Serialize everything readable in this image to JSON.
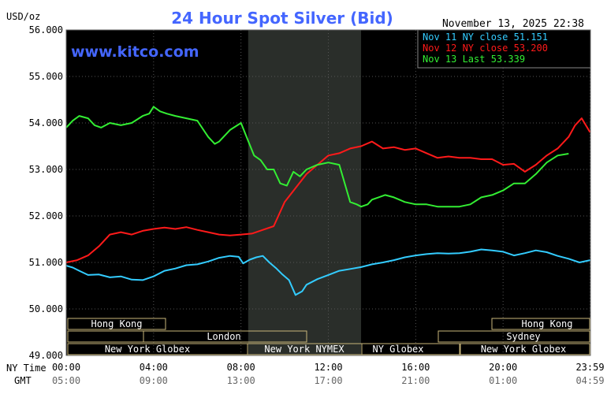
{
  "header": {
    "units": "USD/oz",
    "title": "24 Hour Spot Silver (Bid)",
    "datetime": "November 13, 2025 22:38",
    "watermark": "www.kitco.com"
  },
  "legend": [
    {
      "label": "Nov 11 NY close 51.151",
      "color": "#33ccff"
    },
    {
      "label": "Nov 12 NY close 53.200",
      "color": "#ff1a1a"
    },
    {
      "label": "Nov 13 Last 53.339",
      "color": "#33ee33"
    }
  ],
  "markets": {
    "hong_kong_1": "Hong Kong",
    "london": "London",
    "ny_globex_1": "New York Globex",
    "ny_nymex": "New York NYMEX",
    "ny_globex_2": "NY Globex",
    "hong_kong_2": "Hong Kong",
    "sydney": "Sydney",
    "ny_globex_3": "New York Globex"
  },
  "axis_prefix": {
    "ny": "NY Time",
    "gmt": "GMT"
  },
  "colors": {
    "background": "#000000",
    "title": "#4466ff",
    "nov11": "#33ccff",
    "nov12": "#ff1a1a",
    "nov13": "#33ee33",
    "session_box": "#c8b67a",
    "shade": "#2a2e2a"
  },
  "chart_data": {
    "type": "line",
    "title": "24 Hour Spot Silver (Bid)",
    "ylabel": "USD/oz",
    "ylim": [
      49000,
      56000
    ],
    "xlim": [
      0,
      24
    ],
    "yticks": [
      {
        "v": 49000,
        "label": "49.000"
      },
      {
        "v": 50000,
        "label": "50.000"
      },
      {
        "v": 51000,
        "label": "51.000"
      },
      {
        "v": 52000,
        "label": "52.000"
      },
      {
        "v": 53000,
        "label": "53.000"
      },
      {
        "v": 54000,
        "label": "54.000"
      },
      {
        "v": 55000,
        "label": "55.000"
      },
      {
        "v": 56000,
        "label": "56.000"
      }
    ],
    "xticks": [
      {
        "h": 0,
        "ny": "00:00",
        "gmt": "05:00"
      },
      {
        "h": 4,
        "ny": "04:00",
        "gmt": "09:00"
      },
      {
        "h": 8,
        "ny": "08:00",
        "gmt": "13:00"
      },
      {
        "h": 12,
        "ny": "12:00",
        "gmt": "17:00"
      },
      {
        "h": 16,
        "ny": "16:00",
        "gmt": "21:00"
      },
      {
        "h": 20,
        "ny": "20:00",
        "gmt": "01:00"
      },
      {
        "h": 23.983,
        "ny": "23:59",
        "gmt": "04:59"
      }
    ],
    "shaded_range": [
      8.33,
      13.5
    ],
    "legend_position": "top-right",
    "series": [
      {
        "name": "Nov 11 NY close 51.151",
        "key": "nov11",
        "x": [
          0,
          0.3,
          0.6,
          1.0,
          1.5,
          2.0,
          2.5,
          3.0,
          3.5,
          4.0,
          4.5,
          5.0,
          5.5,
          6.0,
          6.5,
          7.0,
          7.5,
          7.9,
          8.1,
          8.4,
          8.7,
          9.0,
          9.3,
          9.6,
          9.9,
          10.2,
          10.5,
          10.8,
          11.0,
          11.5,
          12.0,
          12.5,
          13.0,
          13.5,
          14.0,
          14.5,
          15.0,
          15.5,
          16.0,
          16.5,
          17.0,
          17.5,
          18.0,
          18.5,
          19.0,
          19.5,
          20.0,
          20.5,
          21.0,
          21.5,
          22.0,
          22.5,
          23.0,
          23.5,
          23.983
        ],
        "y": [
          50930,
          50890,
          50820,
          50730,
          50740,
          50680,
          50700,
          50630,
          50620,
          50700,
          50820,
          50870,
          50940,
          50960,
          51020,
          51100,
          51140,
          51120,
          50980,
          51060,
          51110,
          51140,
          51000,
          50880,
          50740,
          50620,
          50300,
          50380,
          50520,
          50640,
          50730,
          50820,
          50860,
          50900,
          50960,
          51000,
          51050,
          51110,
          51150,
          51180,
          51200,
          51190,
          51200,
          51230,
          51280,
          51260,
          51230,
          51150,
          51200,
          51260,
          51220,
          51140,
          51080,
          51000,
          51050
        ]
      },
      {
        "name": "Nov 12 NY close 53.200",
        "key": "nov12",
        "x": [
          0,
          0.5,
          1.0,
          1.5,
          2.0,
          2.5,
          3.0,
          3.5,
          4.0,
          4.5,
          5.0,
          5.5,
          6.0,
          6.5,
          7.0,
          7.5,
          8.0,
          8.5,
          9.0,
          9.5,
          10.0,
          10.5,
          11.0,
          11.5,
          12.0,
          12.5,
          13.0,
          13.5,
          14.0,
          14.5,
          15.0,
          15.5,
          16.0,
          16.5,
          17.0,
          17.5,
          18.0,
          18.5,
          19.0,
          19.5,
          20.0,
          20.5,
          21.0,
          21.5,
          22.0,
          22.5,
          23.0,
          23.3,
          23.6,
          23.983
        ],
        "y": [
          51000,
          51050,
          51150,
          51350,
          51600,
          51650,
          51600,
          51680,
          51720,
          51750,
          51720,
          51760,
          51700,
          51650,
          51600,
          51580,
          51600,
          51620,
          51700,
          51780,
          52300,
          52600,
          52900,
          53100,
          53300,
          53350,
          53450,
          53500,
          53600,
          53450,
          53480,
          53420,
          53450,
          53350,
          53250,
          53280,
          53250,
          53250,
          53220,
          53220,
          53100,
          53120,
          52950,
          53100,
          53300,
          53450,
          53700,
          53950,
          54100,
          53800
        ]
      },
      {
        "name": "Nov 13 Last 53.339",
        "key": "nov13",
        "x": [
          0,
          0.3,
          0.6,
          1.0,
          1.3,
          1.6,
          2.0,
          2.5,
          3.0,
          3.5,
          3.8,
          4.0,
          4.3,
          4.6,
          5.0,
          5.5,
          6.0,
          6.5,
          6.8,
          7.0,
          7.5,
          8.0,
          8.3,
          8.6,
          8.9,
          9.2,
          9.5,
          9.8,
          10.1,
          10.4,
          10.7,
          11.0,
          11.5,
          12.0,
          12.5,
          13.0,
          13.3,
          13.5,
          13.8,
          14.0,
          14.3,
          14.6,
          15.0,
          15.5,
          16.0,
          16.5,
          17.0,
          17.5,
          18.0,
          18.5,
          19.0,
          19.5,
          20.0,
          20.5,
          21.0,
          21.5,
          22.0,
          22.5,
          23.0
        ],
        "y": [
          53900,
          54050,
          54150,
          54100,
          53950,
          53900,
          54000,
          53950,
          54000,
          54150,
          54200,
          54350,
          54250,
          54200,
          54150,
          54100,
          54050,
          53700,
          53550,
          53600,
          53850,
          54000,
          53650,
          53300,
          53200,
          53000,
          53000,
          52700,
          52650,
          52950,
          52850,
          53000,
          53100,
          53150,
          53100,
          52300,
          52250,
          52200,
          52250,
          52350,
          52400,
          52450,
          52400,
          52300,
          52250,
          52250,
          52200,
          52200,
          52200,
          52250,
          52400,
          52450,
          52550,
          52700,
          52700,
          52900,
          53150,
          53300,
          53339
        ]
      }
    ]
  }
}
